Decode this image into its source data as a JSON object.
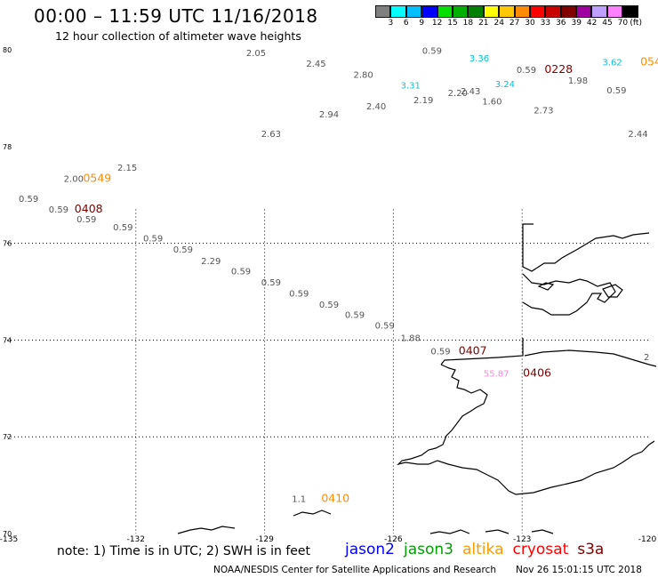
{
  "header": {
    "title": "00:00 – 11:59 UTC 11/16/2018",
    "subtitle": "12 hour collection of altimeter wave heights"
  },
  "colorbar": {
    "colors": [
      "#7f7f7f",
      "#00ffff",
      "#00bfff",
      "#0000ff",
      "#00e000",
      "#00b000",
      "#008000",
      "#ffff00",
      "#ffc800",
      "#ff8c00",
      "#ff0000",
      "#c80000",
      "#800000",
      "#a000a0",
      "#c0a0ff",
      "#ff80ff",
      "#000000"
    ],
    "labels": [
      "3",
      "6",
      "9",
      "12",
      "15",
      "18",
      "21",
      "24",
      "27",
      "30",
      "33",
      "36",
      "39",
      "42",
      "45",
      "70"
    ],
    "unit": "(ft)"
  },
  "map": {
    "x_ticks": [
      "-135",
      "-132",
      "-129",
      "-126",
      "-123",
      "-120"
    ],
    "y_ticks": [
      "80",
      "78",
      "76",
      "74",
      "72",
      "70"
    ],
    "lon_range": [
      -135,
      -120
    ],
    "lat_range": [
      70,
      80
    ],
    "grid": "dotted"
  },
  "observations": [
    {
      "label": "2.05",
      "lon": -129.2,
      "lat": 79.87,
      "color": "#555555"
    },
    {
      "label": "2.45",
      "lon": -127.8,
      "lat": 79.65,
      "color": "#555555"
    },
    {
      "label": "2.80",
      "lon": -126.7,
      "lat": 79.42,
      "color": "#555555"
    },
    {
      "label": "0.59",
      "lon": -125.1,
      "lat": 79.92,
      "color": "#555555"
    },
    {
      "label": "3.36",
      "lon": -124.0,
      "lat": 79.76,
      "color": "#00c8d8"
    },
    {
      "label": "0.59",
      "lon": -122.9,
      "lat": 79.52,
      "color": "#555555"
    },
    {
      "label": "0228",
      "lon": -122.15,
      "lat": 79.52,
      "color": "#800000"
    },
    {
      "label": "1.98",
      "lon": -121.7,
      "lat": 79.3,
      "color": "#555555"
    },
    {
      "label": "3.62",
      "lon": -120.9,
      "lat": 79.68,
      "color": "#00c8d8"
    },
    {
      "label": "054",
      "lon": -120.0,
      "lat": 79.68,
      "color": "#ff8c00"
    },
    {
      "label": "0.59",
      "lon": -120.8,
      "lat": 79.1,
      "color": "#555555"
    },
    {
      "label": "3.31",
      "lon": -125.6,
      "lat": 79.2,
      "color": "#00c8d8"
    },
    {
      "label": "3.24",
      "lon": -123.4,
      "lat": 79.23,
      "color": "#00c8d8"
    },
    {
      "label": "2.19",
      "lon": -125.3,
      "lat": 78.9,
      "color": "#555555"
    },
    {
      "label": "2.20",
      "lon": -124.5,
      "lat": 79.04,
      "color": "#555555"
    },
    {
      "label": "2.43",
      "lon": -124.2,
      "lat": 79.08,
      "color": "#555555"
    },
    {
      "label": "1.60",
      "lon": -123.7,
      "lat": 78.87,
      "color": "#555555"
    },
    {
      "label": "2.40",
      "lon": -126.4,
      "lat": 78.77,
      "color": "#555555"
    },
    {
      "label": "2.73",
      "lon": -122.5,
      "lat": 78.69,
      "color": "#555555"
    },
    {
      "label": "2.94",
      "lon": -127.5,
      "lat": 78.6,
      "color": "#555555"
    },
    {
      "label": "2.63",
      "lon": -128.85,
      "lat": 78.2,
      "color": "#555555"
    },
    {
      "label": "2.44",
      "lon": -120.3,
      "lat": 78.2,
      "color": "#555555"
    },
    {
      "label": "2.15",
      "lon": -132.2,
      "lat": 77.5,
      "color": "#555555"
    },
    {
      "label": "2.00",
      "lon": -133.45,
      "lat": 77.27,
      "color": "#555555"
    },
    {
      "label": "0549",
      "lon": -132.9,
      "lat": 77.27,
      "color": "#ff8c00"
    },
    {
      "label": "0.59",
      "lon": -134.5,
      "lat": 76.86,
      "color": "#555555"
    },
    {
      "label": "0.59",
      "lon": -133.8,
      "lat": 76.64,
      "color": "#555555"
    },
    {
      "label": "0408",
      "lon": -133.1,
      "lat": 76.64,
      "color": "#800000"
    },
    {
      "label": "0.59",
      "lon": -133.15,
      "lat": 76.43,
      "color": "#555555"
    },
    {
      "label": "0.59",
      "lon": -132.3,
      "lat": 76.27,
      "color": "#555555"
    },
    {
      "label": "0.59",
      "lon": -131.6,
      "lat": 76.04,
      "color": "#555555"
    },
    {
      "label": "0.59",
      "lon": -130.9,
      "lat": 75.81,
      "color": "#555555"
    },
    {
      "label": "2.29",
      "lon": -130.25,
      "lat": 75.57,
      "color": "#555555"
    },
    {
      "label": "0.59",
      "lon": -129.55,
      "lat": 75.36,
      "color": "#555555"
    },
    {
      "label": "0.59",
      "lon": -128.85,
      "lat": 75.13,
      "color": "#555555"
    },
    {
      "label": "0.59",
      "lon": -128.2,
      "lat": 74.9,
      "color": "#555555"
    },
    {
      "label": "0.59",
      "lon": -127.5,
      "lat": 74.67,
      "color": "#555555"
    },
    {
      "label": "0.59",
      "lon": -126.9,
      "lat": 74.46,
      "color": "#555555"
    },
    {
      "label": "0.59",
      "lon": -126.2,
      "lat": 74.24,
      "color": "#555555"
    },
    {
      "label": "1.88",
      "lon": -125.6,
      "lat": 73.98,
      "color": "#555555"
    },
    {
      "label": "0.59",
      "lon": -124.9,
      "lat": 73.7,
      "color": "#555555"
    },
    {
      "label": "0407",
      "lon": -124.15,
      "lat": 73.7,
      "color": "#800000"
    },
    {
      "label": "55.87",
      "lon": -123.6,
      "lat": 73.24,
      "color": "#ff88dd"
    },
    {
      "label": "0406",
      "lon": -122.65,
      "lat": 73.24,
      "color": "#800000"
    },
    {
      "label": "2",
      "lon": -120.1,
      "lat": 73.58,
      "color": "#555555"
    },
    {
      "label": "1.1",
      "lon": -128.2,
      "lat": 70.65,
      "color": "#555555"
    },
    {
      "label": "0410",
      "lon": -127.35,
      "lat": 70.65,
      "color": "#ff8c00"
    }
  ],
  "footer": {
    "note": "note: 1) Time is in UTC; 2) SWH is in feet",
    "legend": [
      {
        "name": "jason2",
        "color": "#0000ff"
      },
      {
        "name": "jason3",
        "color": "#00a000"
      },
      {
        "name": "altika",
        "color": "#ff9900"
      },
      {
        "name": "cryosat",
        "color": "#ff0000"
      },
      {
        "name": "s3a",
        "color": "#800000"
      }
    ],
    "credit": "NOAA/NESDIS Center for Satellite Applications and Research",
    "timestamp": "Nov 26 15:01:15 UTC 2018"
  }
}
